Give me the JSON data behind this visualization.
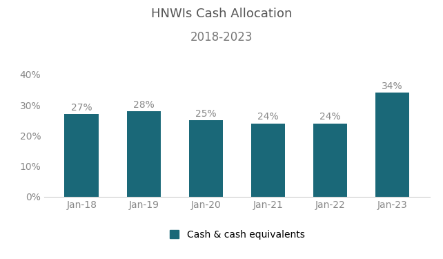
{
  "title_line1": "HNWIs Cash Allocation",
  "title_line2": "2018-2023",
  "categories": [
    "Jan-18",
    "Jan-19",
    "Jan-20",
    "Jan-21",
    "Jan-22",
    "Jan-23"
  ],
  "values": [
    27,
    28,
    25,
    24,
    24,
    34
  ],
  "bar_color": "#1a6878",
  "label_color": "#888888",
  "background_color": "#ffffff",
  "yticks": [
    0,
    10,
    20,
    30,
    40
  ],
  "ytick_labels": [
    "0%",
    "10%",
    "20%",
    "30%",
    "40%"
  ],
  "ylim": [
    0,
    44
  ],
  "legend_label": "Cash & cash equivalents",
  "title_fontsize": 13,
  "subtitle_fontsize": 12,
  "tick_fontsize": 10,
  "label_fontsize": 10,
  "legend_fontsize": 10
}
